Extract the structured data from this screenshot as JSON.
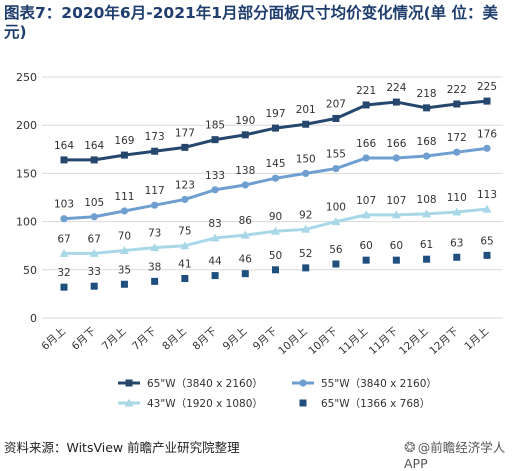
{
  "title": "图表7：2020年6月-2021年1月部分面板尺寸均价变化情况(单 位：美元)",
  "source": "资料来源：WitsView 前瞻产业研究院整理",
  "watermark": "@前瞻经济学人APP",
  "chart_data": {
    "type": "line",
    "title": "图表7：2020年6月-2021年1月部分面板尺寸均价变化情况(单 位：美元)",
    "xlabel": "",
    "ylabel": "",
    "categories": [
      "6月上",
      "6月下",
      "7月上",
      "7月下",
      "8月上",
      "8月下",
      "9月上",
      "9月下",
      "10月上",
      "10月下",
      "11月上",
      "11月下",
      "12月上",
      "12月下",
      "1月上"
    ],
    "yticks": [
      0,
      50,
      100,
      150,
      200,
      250
    ],
    "ylim": [
      0,
      250
    ],
    "grid": true,
    "legend": "bottom",
    "series": [
      {
        "name": "65\"W（3840 x 2160）",
        "color": "#25476e",
        "marker": "square",
        "line": true,
        "values": [
          164,
          164,
          169,
          173,
          177,
          185,
          190,
          197,
          201,
          207,
          221,
          224,
          218,
          222,
          225
        ]
      },
      {
        "name": "55\"W（3840 x 2160）",
        "color": "#6f9fd0",
        "marker": "circle",
        "line": true,
        "values": [
          103,
          105,
          111,
          117,
          123,
          133,
          138,
          145,
          150,
          155,
          166,
          166,
          168,
          172,
          176
        ]
      },
      {
        "name": "43\"W（1920 x 1080）",
        "color": "#a8d8e8",
        "marker": "triangle",
        "line": true,
        "values": [
          67,
          67,
          70,
          73,
          75,
          83,
          86,
          90,
          92,
          100,
          107,
          107,
          108,
          110,
          113
        ]
      },
      {
        "name": "65\"W（1366 x 768）",
        "color": "#1f4f7e",
        "marker": "square",
        "line": false,
        "values": [
          32,
          33,
          35,
          38,
          41,
          44,
          46,
          50,
          52,
          56,
          60,
          60,
          61,
          63,
          65
        ]
      }
    ]
  }
}
